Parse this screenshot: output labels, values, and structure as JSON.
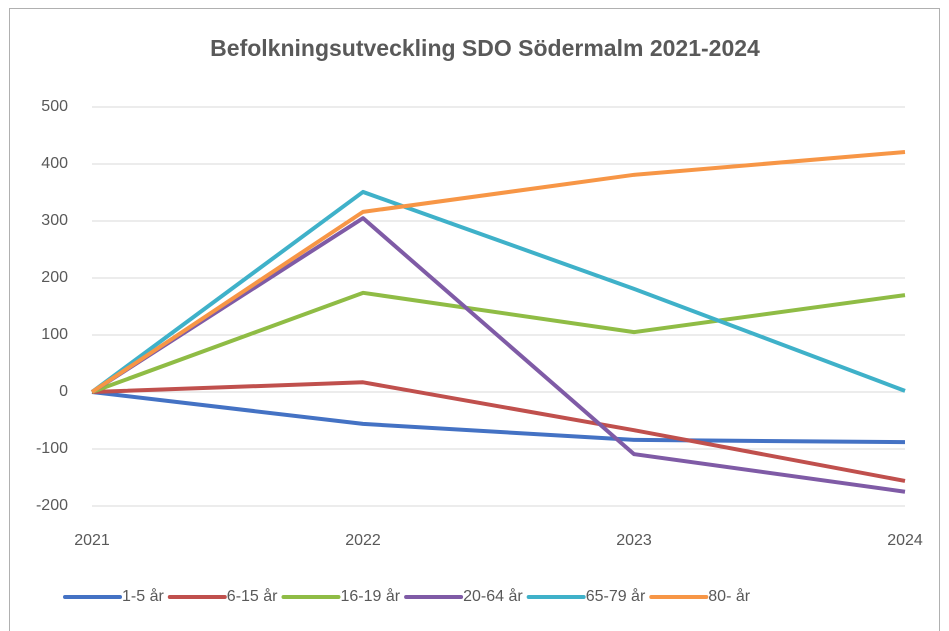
{
  "chart_data": {
    "type": "line",
    "title": "Befolkningsutveckling SDO Södermalm 2021-2024",
    "categories": [
      "2021",
      "2022",
      "2023",
      "2024"
    ],
    "series": [
      {
        "name": "1-5 år",
        "color": "#4472c4",
        "values": [
          0,
          -56,
          -84,
          -88
        ]
      },
      {
        "name": "6-15 år",
        "color": "#c0504d",
        "values": [
          0,
          17,
          -67,
          -156
        ]
      },
      {
        "name": "16-19 år",
        "color": "#8fbc45",
        "values": [
          0,
          174,
          105,
          170
        ]
      },
      {
        "name": "20-64 år",
        "color": "#7f5ba6",
        "values": [
          0,
          305,
          -109,
          -175
        ]
      },
      {
        "name": "65-79 år",
        "color": "#3fb1c9",
        "values": [
          0,
          351,
          181,
          2
        ]
      },
      {
        "name": "80- år",
        "color": "#f79646",
        "values": [
          0,
          316,
          381,
          421
        ]
      }
    ],
    "ylim": [
      -200,
      500
    ],
    "yticks": [
      -200,
      -100,
      0,
      100,
      200,
      300,
      400,
      500
    ],
    "grid": true,
    "legend": "bottom"
  }
}
